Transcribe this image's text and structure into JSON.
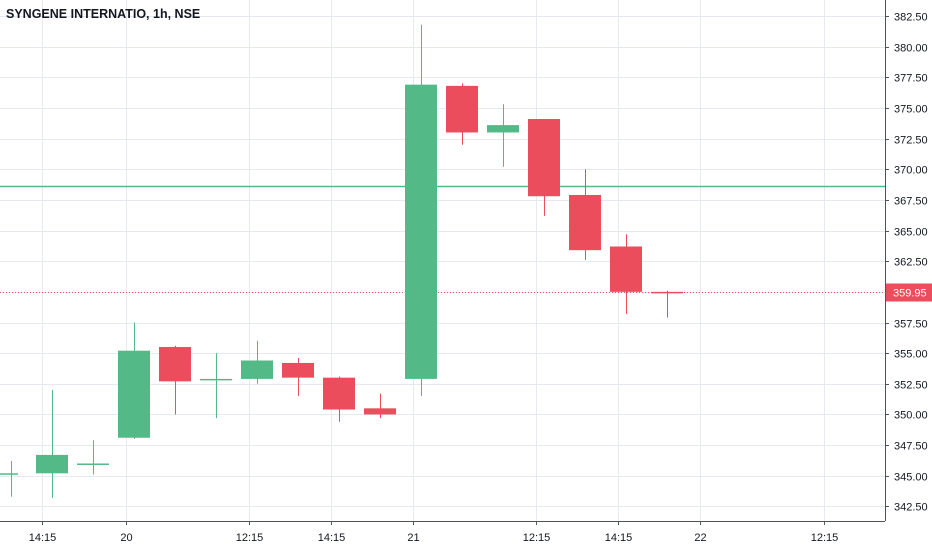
{
  "header": {
    "title": "SYNGENE INTERNATIO, 1h, NSE"
  },
  "colors": {
    "up": "#53b987",
    "down": "#eb4d5c",
    "grid": "#e6eaf0",
    "axis": "#131722",
    "last_price_line": "#eb4d5c",
    "horizontal_line": "#53b987"
  },
  "chart_data": {
    "type": "candlestick",
    "title": "SYNGENE INTERNATIO, 1h, NSE",
    "ylim": [
      341.5,
      383.4
    ],
    "y_ticks": [
      "342.50",
      "345.00",
      "347.50",
      "350.00",
      "352.50",
      "355.00",
      "357.50",
      "360.00",
      "362.50",
      "365.00",
      "367.50",
      "370.00",
      "372.50",
      "375.00",
      "377.50",
      "380.00",
      "382.50"
    ],
    "x_ticks": [
      "14:15",
      "20",
      "12:15",
      "14:15",
      "21",
      "12:15",
      "14:15",
      "22",
      "12:15"
    ],
    "grid": true,
    "last_price": {
      "value": 359.95,
      "label": "359.95"
    },
    "horizontal_line": {
      "value": 368.6
    },
    "candles": [
      {
        "o": 345.2,
        "h": 346.2,
        "l": 343.3,
        "c": 345.2
      },
      {
        "o": 345.2,
        "h": 352.0,
        "l": 343.2,
        "c": 346.7
      },
      {
        "o": 346.0,
        "h": 347.9,
        "l": 345.1,
        "c": 346.0
      },
      {
        "o": 348.1,
        "h": 357.5,
        "l": 348.0,
        "c": 355.2
      },
      {
        "o": 355.5,
        "h": 355.6,
        "l": 350.0,
        "c": 352.7
      },
      {
        "o": 352.9,
        "h": 355.0,
        "l": 349.7,
        "c": 352.9
      },
      {
        "o": 352.9,
        "h": 356.0,
        "l": 352.5,
        "c": 354.4
      },
      {
        "o": 354.2,
        "h": 354.6,
        "l": 351.5,
        "c": 353.0
      },
      {
        "o": 353.0,
        "h": 353.1,
        "l": 349.4,
        "c": 350.4
      },
      {
        "o": 350.5,
        "h": 351.7,
        "l": 349.7,
        "c": 350.0
      },
      {
        "o": 352.9,
        "h": 381.8,
        "l": 351.5,
        "c": 376.9
      },
      {
        "o": 376.8,
        "h": 377.0,
        "l": 372.0,
        "c": 373.0
      },
      {
        "o": 373.0,
        "h": 375.3,
        "l": 370.2,
        "c": 373.6
      },
      {
        "o": 374.1,
        "h": 374.1,
        "l": 366.2,
        "c": 367.8
      },
      {
        "o": 367.9,
        "h": 370.0,
        "l": 362.6,
        "c": 363.4
      },
      {
        "o": 363.7,
        "h": 364.7,
        "l": 358.2,
        "c": 360.0
      },
      {
        "o": 360.0,
        "h": 360.1,
        "l": 357.9,
        "c": 359.95
      }
    ]
  }
}
